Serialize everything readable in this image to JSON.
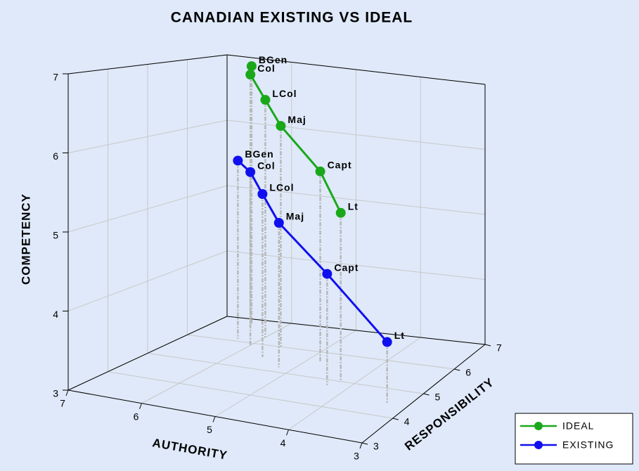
{
  "chart_data": {
    "type": "scatter3d",
    "title": "CANADIAN EXISTING VS IDEAL",
    "x_label": "AUTHORITY",
    "y_label": "RESPONSIBILITY",
    "z_label": "COMPETENCY",
    "categories": [
      "BGen",
      "Col",
      "LCol",
      "Maj",
      "Capt",
      "Lt"
    ],
    "xlim": [
      7,
      3
    ],
    "xticks": [
      7,
      6,
      5,
      4,
      3
    ],
    "ylim": [
      3,
      7
    ],
    "yticks": [
      3,
      4,
      5,
      6,
      7
    ],
    "zlim": [
      3,
      7
    ],
    "zticks": [
      3,
      4,
      5,
      6,
      7
    ],
    "grid": true,
    "drop_lines": true,
    "drop_line_color": "#b8b8b8",
    "legend": "lower right",
    "series": [
      {
        "name": "IDEAL",
        "color": "#1aa81a",
        "x": [
          6.5,
          6.4,
          6.0,
          5.6,
          4.8,
          4.2
        ],
        "y": [
          6.8,
          6.6,
          6.3,
          6.0,
          5.6,
          5.0
        ],
        "z": [
          6.9,
          6.8,
          6.5,
          6.2,
          5.7,
          5.3
        ]
      },
      {
        "name": "EXISTING",
        "color": "#1010ee",
        "x": [
          6.3,
          6.0,
          5.6,
          5.2,
          4.3,
          3.3
        ],
        "y": [
          6.1,
          5.9,
          5.5,
          5.2,
          4.8,
          4.5
        ],
        "z": [
          5.6,
          5.5,
          5.3,
          5.0,
          4.5,
          3.8
        ]
      }
    ]
  }
}
